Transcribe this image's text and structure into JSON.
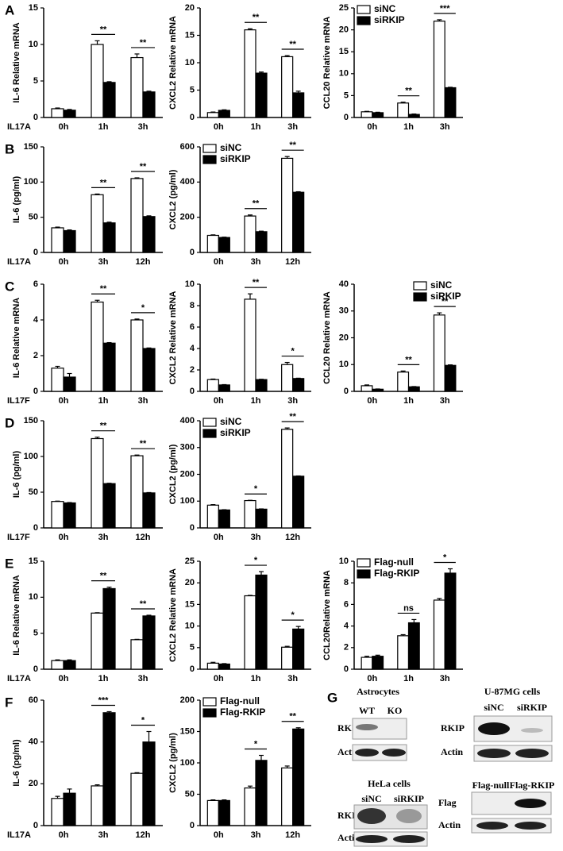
{
  "chart_data": [
    {
      "type": "bar",
      "panel": "A",
      "ylabel": "IL-6 Relative mRNA",
      "xlabel": "IL17A",
      "categories": [
        "0h",
        "1h",
        "3h"
      ],
      "series": [
        {
          "color": "#ffffff",
          "values": [
            1.2,
            10,
            8.2
          ],
          "errors": [
            0.1,
            0.5,
            0.5
          ]
        },
        {
          "color": "#000000",
          "values": [
            1.0,
            4.8,
            3.5
          ],
          "errors": [
            0.1,
            0.1,
            0.1
          ]
        }
      ],
      "significance": [
        null,
        "**",
        "**"
      ],
      "ylim": [
        0,
        15
      ],
      "yticks": [
        0,
        5,
        10,
        15
      ]
    },
    {
      "type": "bar",
      "ylabel": "CXCL2 Relative mRNA",
      "categories": [
        "0h",
        "1h",
        "3h"
      ],
      "series": [
        {
          "color": "#ffffff",
          "values": [
            0.9,
            16,
            11.1
          ],
          "errors": [
            0.1,
            0.2,
            0.2
          ]
        },
        {
          "color": "#000000",
          "values": [
            1.3,
            8.1,
            4.5
          ],
          "errors": [
            0.1,
            0.2,
            0.3
          ]
        }
      ],
      "significance": [
        null,
        "**",
        "**"
      ],
      "ylim": [
        0,
        20
      ],
      "yticks": [
        0,
        5,
        10,
        15,
        20
      ]
    },
    {
      "type": "bar",
      "ylabel": "CCL20 Relative mRNA",
      "categories": [
        "0h",
        "1h",
        "3h"
      ],
      "series": [
        {
          "name": "siNC",
          "color": "#ffffff",
          "values": [
            1.3,
            3.3,
            22
          ],
          "errors": [
            0.1,
            0.2,
            0.3
          ]
        },
        {
          "name": "siRKIP",
          "color": "#000000",
          "values": [
            1.1,
            0.7,
            6.8
          ],
          "errors": [
            0.1,
            0.1,
            0.1
          ]
        }
      ],
      "significance": [
        null,
        "**",
        "***"
      ],
      "legend": "upper left",
      "ylim": [
        0,
        25
      ],
      "yticks": [
        0,
        5,
        10,
        15,
        20,
        25
      ]
    },
    {
      "type": "bar",
      "panel": "B",
      "ylabel": "IL-6 (pg/ml)",
      "xlabel": "IL17A",
      "categories": [
        "0h",
        "3h",
        "12h"
      ],
      "series": [
        {
          "color": "#ffffff",
          "values": [
            35,
            82,
            105
          ],
          "errors": [
            1,
            1,
            1
          ]
        },
        {
          "color": "#000000",
          "values": [
            31,
            42,
            51
          ],
          "errors": [
            1,
            1,
            1
          ]
        }
      ],
      "significance": [
        null,
        "**",
        "**"
      ],
      "ylim": [
        0,
        150
      ],
      "yticks": [
        0,
        50,
        100,
        150
      ]
    },
    {
      "type": "bar",
      "ylabel": "CXCL2 (pg/ml)",
      "categories": [
        "0h",
        "3h",
        "12h"
      ],
      "series": [
        {
          "name": "siNC",
          "color": "#ffffff",
          "values": [
            97,
            207,
            535
          ],
          "errors": [
            3,
            6,
            10
          ]
        },
        {
          "name": "siRKIP",
          "color": "#000000",
          "values": [
            85,
            118,
            342
          ],
          "errors": [
            2,
            3,
            3
          ]
        }
      ],
      "significance": [
        null,
        "**",
        "**"
      ],
      "legend": "upper left",
      "ylim": [
        0,
        600
      ],
      "yticks": [
        0,
        200,
        400,
        600
      ]
    },
    {
      "type": "bar",
      "panel": "C",
      "ylabel": "IL-6 Relative mRNA",
      "xlabel": "IL17F",
      "categories": [
        "0h",
        "1h",
        "3h"
      ],
      "series": [
        {
          "color": "#ffffff",
          "values": [
            1.3,
            5.0,
            4.0
          ],
          "errors": [
            0.1,
            0.1,
            0.05
          ]
        },
        {
          "color": "#000000",
          "values": [
            0.8,
            2.7,
            2.4
          ],
          "errors": [
            0.2,
            0.03,
            0.03
          ]
        }
      ],
      "significance": [
        null,
        "**",
        "*"
      ],
      "ylim": [
        0,
        6
      ],
      "yticks": [
        0,
        2,
        4,
        6
      ]
    },
    {
      "type": "bar",
      "ylabel": "CXCL2 Relative mRNA",
      "categories": [
        "0h",
        "1h",
        "3h"
      ],
      "series": [
        {
          "color": "#ffffff",
          "values": [
            1.1,
            8.6,
            2.5
          ],
          "errors": [
            0.05,
            0.5,
            0.2
          ]
        },
        {
          "color": "#000000",
          "values": [
            0.6,
            1.1,
            1.2
          ],
          "errors": [
            0.03,
            0.03,
            0.03
          ]
        }
      ],
      "significance": [
        null,
        "**",
        "*"
      ],
      "ylim": [
        0,
        10
      ],
      "yticks": [
        0,
        2,
        4,
        6,
        8,
        10
      ]
    },
    {
      "type": "bar",
      "ylabel": "CCL20 Relative mRNA",
      "categories": [
        "0h",
        "1h",
        "3h"
      ],
      "series": [
        {
          "name": "siNC",
          "color": "#ffffff",
          "values": [
            2.1,
            7.2,
            28.5
          ],
          "errors": [
            0.3,
            0.4,
            0.8
          ]
        },
        {
          "name": "siRKIP",
          "color": "#000000",
          "values": [
            0.8,
            1.7,
            9.7
          ],
          "errors": [
            0.1,
            0.1,
            0.2
          ]
        }
      ],
      "significance": [
        null,
        "**",
        "**"
      ],
      "legend": "upper right",
      "ylim": [
        0,
        40
      ],
      "yticks": [
        0,
        10,
        20,
        30,
        40
      ]
    },
    {
      "type": "bar",
      "panel": "D",
      "ylabel": "IL-6 (pg/ml)",
      "xlabel": "IL17F",
      "categories": [
        "0h",
        "3h",
        "12h"
      ],
      "series": [
        {
          "color": "#ffffff",
          "values": [
            37,
            125,
            101
          ],
          "errors": [
            0.5,
            2,
            1
          ]
        },
        {
          "color": "#000000",
          "values": [
            35,
            62,
            49
          ],
          "errors": [
            0.5,
            0.5,
            0.5
          ]
        }
      ],
      "significance": [
        null,
        "**",
        "**"
      ],
      "ylim": [
        0,
        150
      ],
      "yticks": [
        0,
        50,
        100,
        150
      ]
    },
    {
      "type": "bar",
      "ylabel": "CXCL2 (pg/ml)",
      "categories": [
        "0h",
        "3h",
        "12h"
      ],
      "series": [
        {
          "name": "siNC",
          "color": "#ffffff",
          "values": [
            85,
            102,
            368
          ],
          "errors": [
            2,
            1,
            5
          ]
        },
        {
          "name": "siRKIP",
          "color": "#000000",
          "values": [
            67,
            70,
            193
          ],
          "errors": [
            1,
            1,
            1
          ]
        }
      ],
      "significance": [
        null,
        "*",
        "**"
      ],
      "legend": "upper left",
      "ylim": [
        0,
        400
      ],
      "yticks": [
        0,
        100,
        200,
        300,
        400
      ]
    },
    {
      "type": "bar",
      "panel": "E",
      "ylabel": "IL-6 Relative mRNA",
      "xlabel": "IL17A",
      "categories": [
        "0h",
        "1h",
        "3h"
      ],
      "series": [
        {
          "color": "#ffffff",
          "values": [
            1.2,
            7.8,
            4.1
          ],
          "errors": [
            0.1,
            0.05,
            0.05
          ]
        },
        {
          "color": "#000000",
          "values": [
            1.2,
            11.2,
            7.4
          ],
          "errors": [
            0.1,
            0.2,
            0.1
          ]
        }
      ],
      "significance": [
        null,
        "**",
        "**"
      ],
      "ylim": [
        0,
        15
      ],
      "yticks": [
        0,
        5,
        10,
        15
      ]
    },
    {
      "type": "bar",
      "ylabel": "CXCL2 Relative mRNA",
      "categories": [
        "0h",
        "1h",
        "3h"
      ],
      "series": [
        {
          "color": "#ffffff",
          "values": [
            1.4,
            17,
            5.1
          ],
          "errors": [
            0.2,
            0.1,
            0.2
          ]
        },
        {
          "color": "#000000",
          "values": [
            1.2,
            21.8,
            9.3
          ],
          "errors": [
            0.1,
            0.8,
            0.6
          ]
        }
      ],
      "significance": [
        null,
        "*",
        "*"
      ],
      "ylim": [
        0,
        25
      ],
      "yticks": [
        0,
        5,
        10,
        15,
        20,
        25
      ]
    },
    {
      "type": "bar",
      "ylabel": "CCL20Relative mRNA",
      "categories": [
        "0h",
        "1h",
        "3h"
      ],
      "series": [
        {
          "name": "Flag-null",
          "color": "#ffffff",
          "values": [
            1.1,
            3.1,
            6.4
          ],
          "errors": [
            0.1,
            0.1,
            0.15
          ]
        },
        {
          "name": "Flag-RKIP",
          "color": "#000000",
          "values": [
            1.2,
            4.3,
            8.9
          ],
          "errors": [
            0.1,
            0.3,
            0.4
          ]
        }
      ],
      "significance": [
        null,
        "ns",
        "*"
      ],
      "legend": "upper left",
      "ylim": [
        0,
        10
      ],
      "yticks": [
        0,
        2,
        4,
        6,
        8,
        10
      ]
    },
    {
      "type": "bar",
      "panel": "F",
      "ylabel": "IL-6 (pg/ml)",
      "xlabel": "IL17A",
      "categories": [
        "0h",
        "3h",
        "12h"
      ],
      "series": [
        {
          "color": "#ffffff",
          "values": [
            13,
            19,
            25
          ],
          "errors": [
            1,
            0.5,
            0.3
          ]
        },
        {
          "color": "#000000",
          "values": [
            15.5,
            54,
            40
          ],
          "errors": [
            2,
            0.5,
            5
          ]
        }
      ],
      "significance": [
        null,
        "***",
        "*"
      ],
      "ylim": [
        0,
        60
      ],
      "yticks": [
        0,
        20,
        40,
        60
      ]
    },
    {
      "type": "bar",
      "ylabel": "CXCL2 (pg/ml)",
      "categories": [
        "0h",
        "3h",
        "12h"
      ],
      "series": [
        {
          "name": "Flag-null",
          "color": "#ffffff",
          "values": [
            40,
            60,
            92
          ],
          "errors": [
            1,
            3,
            3
          ]
        },
        {
          "name": "Flag-RKIP",
          "color": "#000000",
          "values": [
            40,
            104,
            154
          ],
          "errors": [
            1,
            8,
            2
          ]
        }
      ],
      "significance": [
        null,
        "*",
        "**"
      ],
      "legend": "upper left",
      "ylim": [
        0,
        200
      ],
      "yticks": [
        0,
        50,
        100,
        150,
        200
      ]
    }
  ],
  "blot_panel": {
    "panel": "G",
    "groups": [
      {
        "title": "Astrocytes",
        "lanes": [
          "WT",
          "KO"
        ],
        "rows": [
          "RKIP",
          "Actin"
        ]
      },
      {
        "title": "U-87MG cells",
        "lanes": [
          "siNC",
          "siRKIP"
        ],
        "rows": [
          "RKIP",
          "Actin"
        ]
      },
      {
        "title": "HeLa cells",
        "lanes": [
          "siNC",
          "siRKIP"
        ],
        "rows": [
          "RKIP",
          "Actin"
        ]
      },
      {
        "lanes": [
          "Flag-null",
          "Flag-RKIP"
        ],
        "rows": [
          "Flag",
          "Actin"
        ]
      }
    ]
  }
}
